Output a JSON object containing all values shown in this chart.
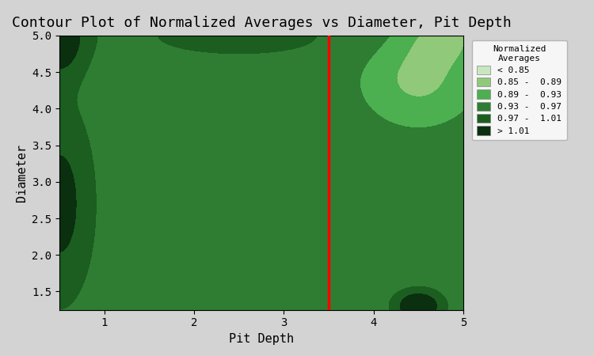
{
  "title": "Contour Plot of Normalized Averages vs Diameter, Pit Depth",
  "xlabel": "Pit Depth",
  "ylabel": "Diameter",
  "xlim": [
    0.5,
    5.0
  ],
  "ylim": [
    1.25,
    5.0
  ],
  "xticks": [
    1,
    2,
    3,
    4,
    5
  ],
  "yticks": [
    1.5,
    2.0,
    2.5,
    3.0,
    3.5,
    4.0,
    4.5,
    5.0
  ],
  "red_line_x": 3.5,
  "legend_title": "Normalized\nAverages",
  "legend_labels": [
    "< 0.85",
    "0.85 -  0.89",
    "0.89 -  0.93",
    "0.93 -  0.97",
    "0.97 -  1.01",
    "> 1.01"
  ],
  "colors": [
    "#c8e6c0",
    "#90c97a",
    "#4caf50",
    "#2e7d32",
    "#1b5e20",
    "#0a3010"
  ],
  "background_color": "#d3d3d3",
  "title_fontsize": 13,
  "axis_label_fontsize": 11,
  "tick_fontsize": 10
}
